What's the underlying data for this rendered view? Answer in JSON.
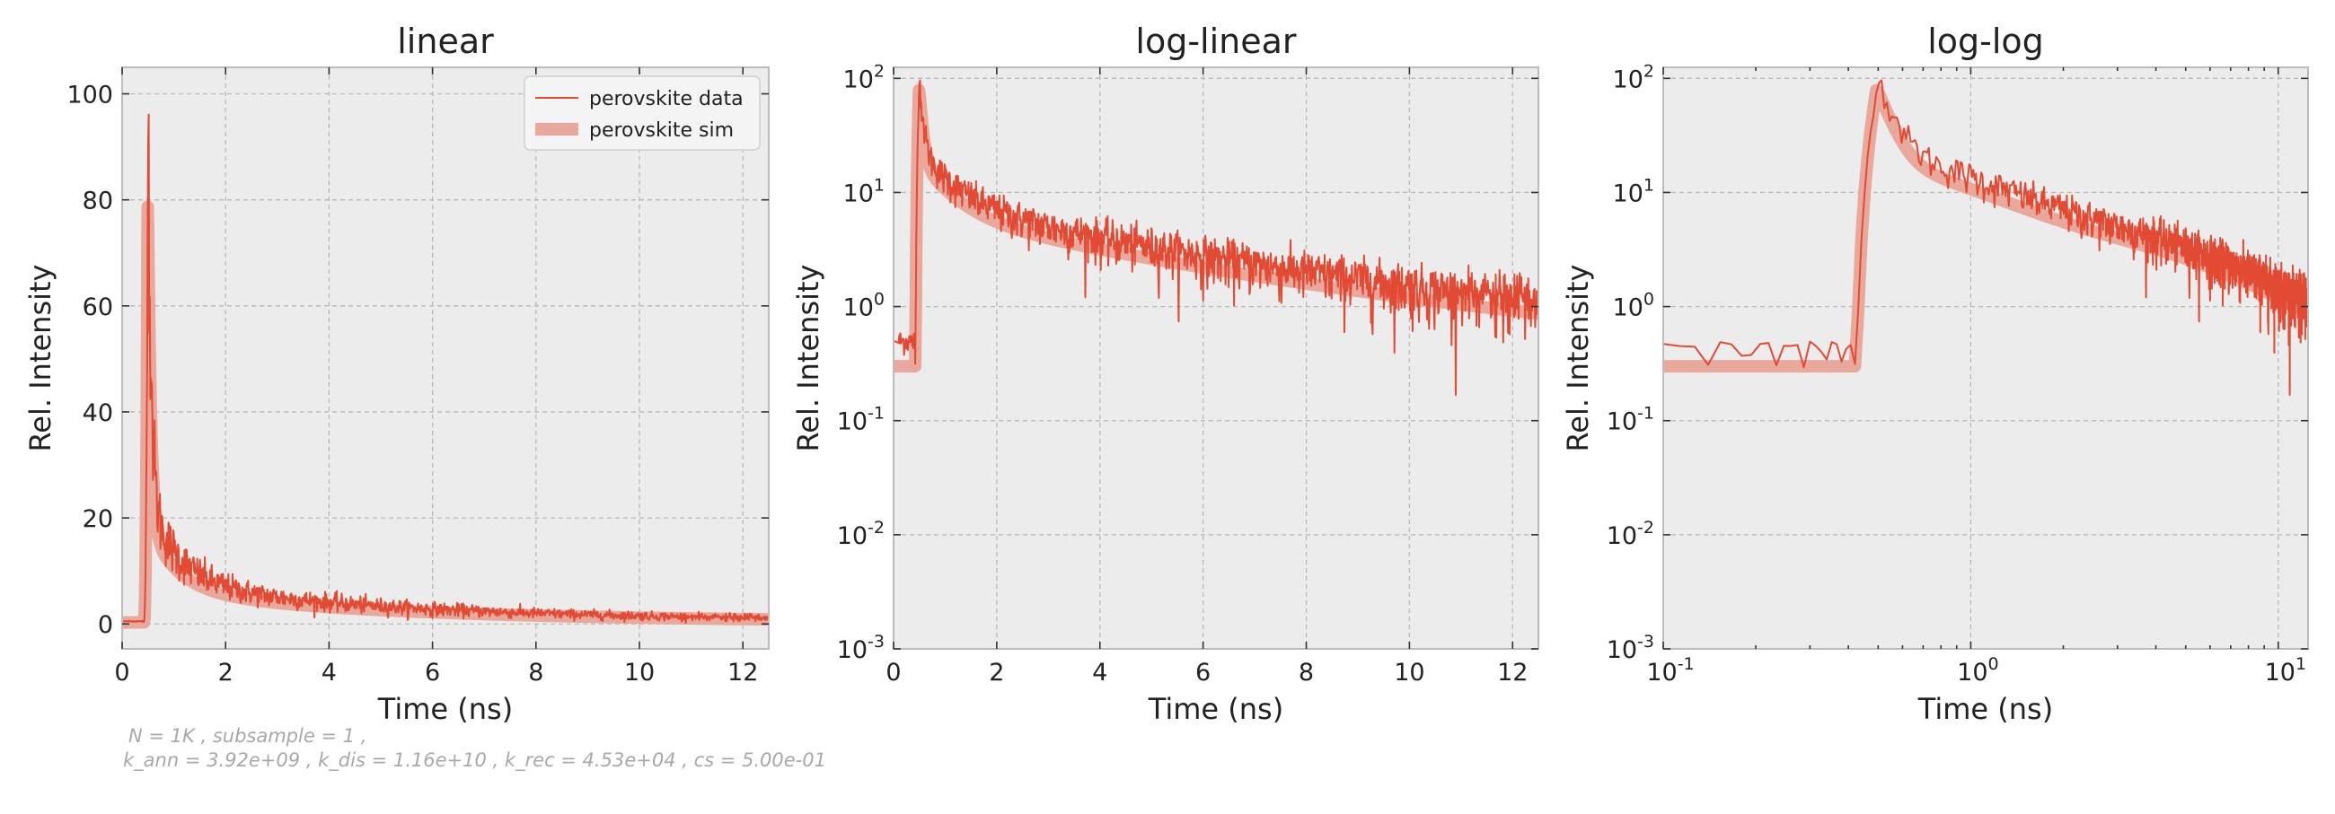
{
  "colors": {
    "data": "#e24a33",
    "sim": "#e8a89c",
    "panel_bg": "#ececec",
    "grid": "#b8b8b8",
    "frame": "#bcbcbc"
  },
  "annotation": {
    "line1": "N = 1K , subsample = 1 ,",
    "line2": "k_ann = 3.92e+09 , k_dis = 1.16e+10 , k_rec = 4.53e+04 , cs = 5.00e-01"
  },
  "chart_data": [
    {
      "type": "line",
      "title": "linear",
      "xlabel": "Time (ns)",
      "ylabel": "Rel. Intensity",
      "xscale": "linear",
      "yscale": "linear",
      "xlim": [
        0,
        12.5
      ],
      "ylim": [
        -4.7,
        105
      ],
      "xticks": [
        0,
        2,
        4,
        6,
        8,
        10,
        12
      ],
      "xtick_labels": [
        "0",
        "2",
        "4",
        "6",
        "8",
        "10",
        "12"
      ],
      "yticks": [
        0,
        20,
        40,
        60,
        80,
        100
      ],
      "ytick_labels": [
        "0",
        "20",
        "40",
        "60",
        "80",
        "100"
      ],
      "grid": true,
      "legend": {
        "position": "top-right",
        "entries": [
          {
            "label": "perovskite data",
            "style": "thin-line"
          },
          {
            "label": "perovskite sim",
            "style": "thick-line"
          }
        ]
      },
      "series": [
        {
          "name": "perovskite data",
          "width": "thin"
        },
        {
          "name": "perovskite sim",
          "width": "thick"
        }
      ]
    },
    {
      "type": "line",
      "title": "log-linear",
      "xlabel": "Time (ns)",
      "ylabel": "Rel. Intensity",
      "xscale": "linear",
      "yscale": "log",
      "xlim": [
        0,
        12.5
      ],
      "ylim": [
        0.001,
        125
      ],
      "xticks": [
        0,
        2,
        4,
        6,
        8,
        10,
        12
      ],
      "xtick_labels": [
        "0",
        "2",
        "4",
        "6",
        "8",
        "10",
        "12"
      ],
      "yticks": [
        0.001,
        0.01,
        0.1,
        1,
        10,
        100
      ],
      "ytick_labels": [
        {
          "base": "10",
          "exp": "-3"
        },
        {
          "base": "10",
          "exp": "-2"
        },
        {
          "base": "10",
          "exp": "-1"
        },
        {
          "base": "10",
          "exp": "0"
        },
        {
          "base": "10",
          "exp": "1"
        },
        {
          "base": "10",
          "exp": "2"
        }
      ],
      "grid": true,
      "series": [
        {
          "name": "perovskite data",
          "width": "thin"
        },
        {
          "name": "perovskite sim",
          "width": "thick"
        }
      ]
    },
    {
      "type": "line",
      "title": "log-log",
      "xlabel": "Time (ns)",
      "ylabel": "Rel. Intensity",
      "xscale": "log",
      "yscale": "log",
      "xlim": [
        0.1,
        12.5
      ],
      "ylim": [
        0.001,
        125
      ],
      "xticks": [
        0.1,
        1,
        10
      ],
      "xtick_labels": [
        {
          "base": "10",
          "exp": "-1"
        },
        {
          "base": "10",
          "exp": "0"
        },
        {
          "base": "10",
          "exp": "1"
        }
      ],
      "yticks": [
        0.001,
        0.01,
        0.1,
        1,
        10,
        100
      ],
      "ytick_labels": [
        {
          "base": "10",
          "exp": "-3"
        },
        {
          "base": "10",
          "exp": "-2"
        },
        {
          "base": "10",
          "exp": "-1"
        },
        {
          "base": "10",
          "exp": "0"
        },
        {
          "base": "10",
          "exp": "1"
        },
        {
          "base": "10",
          "exp": "2"
        }
      ],
      "grid": true,
      "series": [
        {
          "name": "perovskite data",
          "width": "thin"
        },
        {
          "name": "perovskite sim",
          "width": "thick"
        }
      ]
    }
  ]
}
